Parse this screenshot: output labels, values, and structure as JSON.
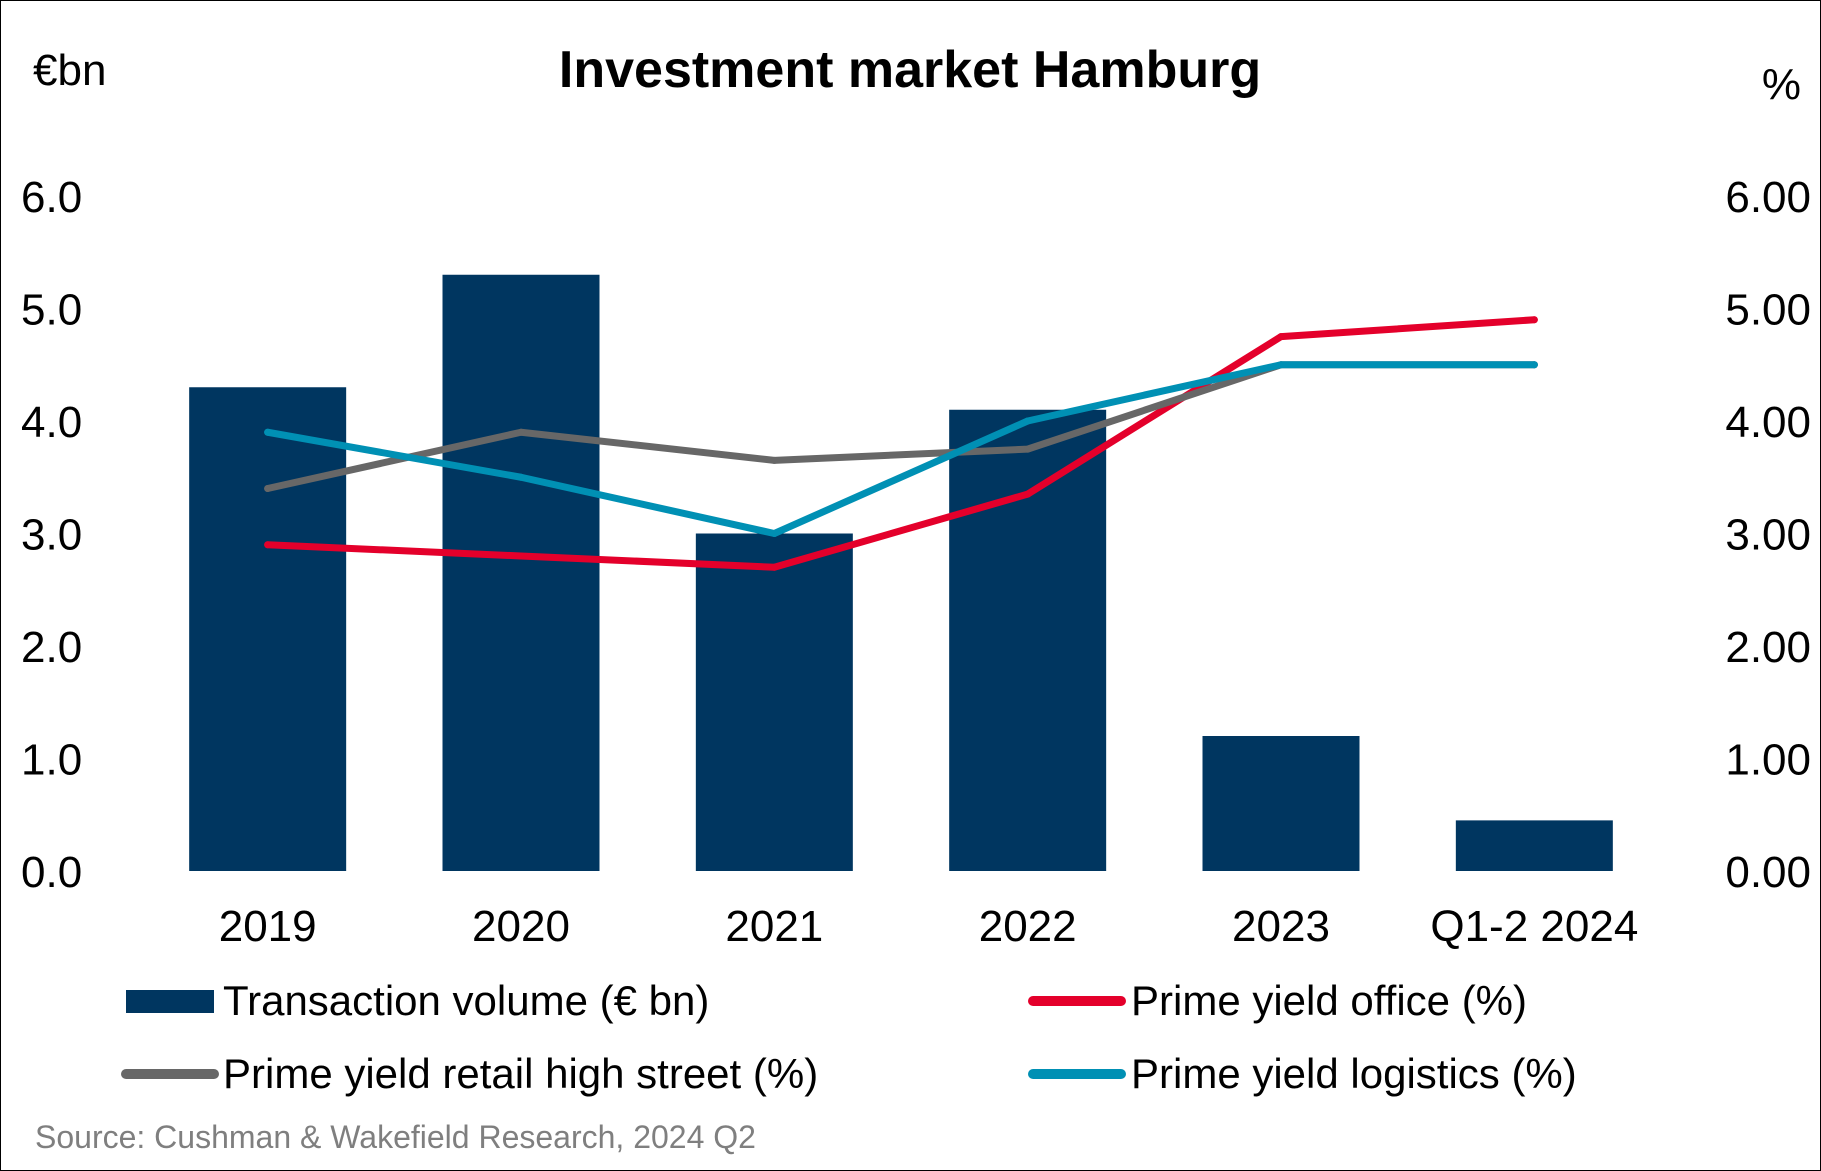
{
  "chart_data": {
    "type": "bar",
    "title": "Investment market Hamburg",
    "y_left_unit": "€bn",
    "y_right_unit": "%",
    "categories": [
      "2019",
      "2020",
      "2021",
      "2022",
      "2023",
      "Q1-2 2024"
    ],
    "y_left_ticks": [
      "0.0",
      "1.0",
      "2.0",
      "3.0",
      "4.0",
      "5.0",
      "6.0"
    ],
    "y_right_ticks": [
      "0.00",
      "1.00",
      "2.00",
      "3.00",
      "4.00",
      "5.00",
      "6.00"
    ],
    "ylim_left": [
      0,
      6
    ],
    "ylim_right": [
      0,
      6
    ],
    "grid": false,
    "legend_position": "bottom",
    "bars": {
      "name": "Transaction volume (€ bn)",
      "color": "#003660",
      "values": [
        4.3,
        5.3,
        3.0,
        4.1,
        1.2,
        0.45
      ]
    },
    "series": [
      {
        "name": "Prime yield office (%)",
        "color": "#e4002b",
        "values": [
          2.9,
          2.8,
          2.7,
          3.35,
          4.75,
          4.9
        ]
      },
      {
        "name": "Prime yield retail high street (%)",
        "color": "#676767",
        "values": [
          3.4,
          3.9,
          3.65,
          3.75,
          4.5,
          4.5
        ]
      },
      {
        "name": "Prime yield logistics (%)",
        "color": "#0090b4",
        "values": [
          3.9,
          3.5,
          3.0,
          4.0,
          4.5,
          4.5
        ]
      }
    ],
    "source": "Source: Cushman & Wakefield Research, 2024 Q2"
  }
}
